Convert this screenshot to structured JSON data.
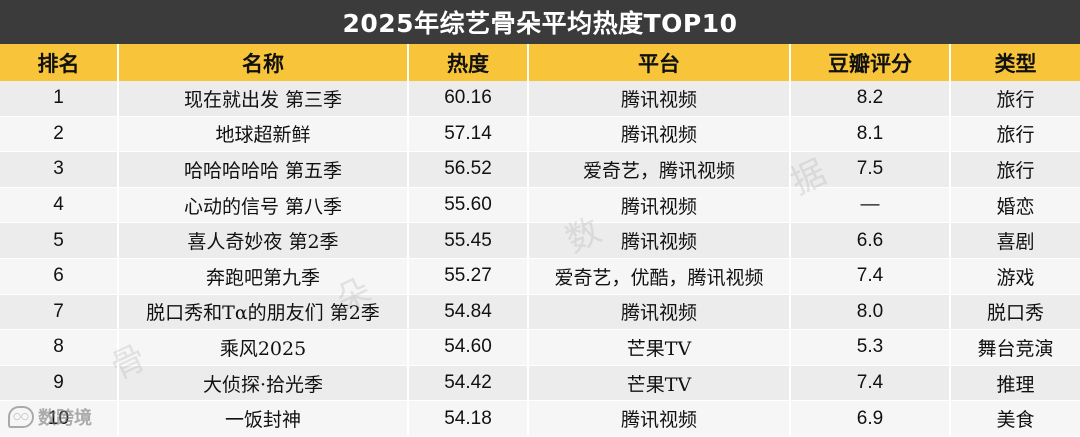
{
  "title": "2025年综艺骨朵平均热度TOP10",
  "headers": {
    "rank": "排名",
    "name": "名称",
    "heat": "热度",
    "platform": "平台",
    "douban": "豆瓣评分",
    "genre": "类型"
  },
  "rows": [
    {
      "rank": "1",
      "name": "现在就出发 第三季",
      "heat": "60.16",
      "platform": "腾讯视频",
      "douban": "8.2",
      "genre": "旅行"
    },
    {
      "rank": "2",
      "name": "地球超新鲜",
      "heat": "57.14",
      "platform": "腾讯视频",
      "douban": "8.1",
      "genre": "旅行"
    },
    {
      "rank": "3",
      "name": "哈哈哈哈哈 第五季",
      "heat": "56.52",
      "platform": "爱奇艺，腾讯视频",
      "douban": "7.5",
      "genre": "旅行"
    },
    {
      "rank": "4",
      "name": "心动的信号 第八季",
      "heat": "55.60",
      "platform": "腾讯视频",
      "douban": "—",
      "genre": "婚恋"
    },
    {
      "rank": "5",
      "name": "喜人奇妙夜 第2季",
      "heat": "55.45",
      "platform": "腾讯视频",
      "douban": "6.6",
      "genre": "喜剧"
    },
    {
      "rank": "6",
      "name": "奔跑吧第九季",
      "heat": "55.27",
      "platform": "爱奇艺，优酷，腾讯视频",
      "douban": "7.4",
      "genre": "游戏"
    },
    {
      "rank": "7",
      "name": "脱口秀和Tα的朋友们 第2季",
      "heat": "54.84",
      "platform": "腾讯视频",
      "douban": "8.0",
      "genre": "脱口秀"
    },
    {
      "rank": "8",
      "name": "乘风2025",
      "heat": "54.60",
      "platform": "芒果TV",
      "douban": "5.3",
      "genre": "舞台竞演"
    },
    {
      "rank": "9",
      "name": "大侦探·拾光季",
      "heat": "54.42",
      "platform": "芒果TV",
      "douban": "7.4",
      "genre": "推理"
    },
    {
      "rank": "10",
      "name": "一饭封神",
      "heat": "54.18",
      "platform": "腾讯视频",
      "douban": "6.9",
      "genre": "美食"
    }
  ],
  "watermark": {
    "chars": [
      "骨",
      "朵",
      "数",
      "据"
    ],
    "logo_text": "数跨境",
    "logo_icon": "chat-bubble-icon"
  }
}
